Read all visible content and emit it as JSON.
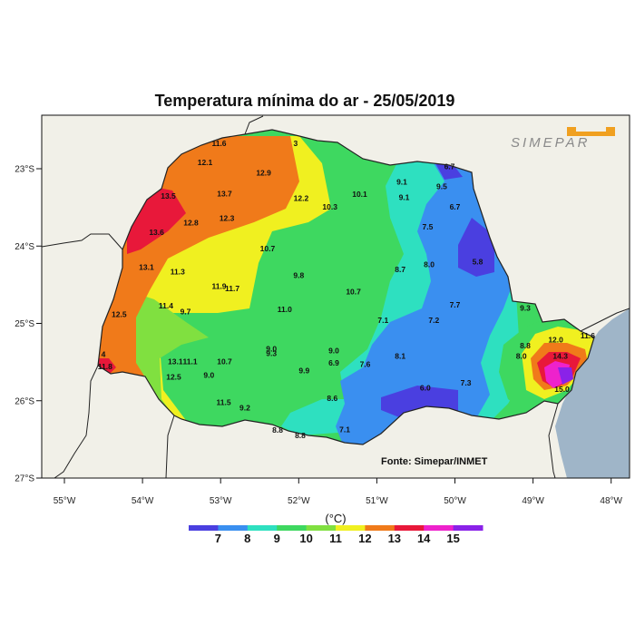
{
  "title": "Temperatura mínima do ar - 25/05/2019",
  "source": "Fonte: Simepar/INMET",
  "logo": {
    "text": "SIMEPAR",
    "mark_color": "#f0a020"
  },
  "axes": {
    "lat_ticks": [
      "23°S",
      "24°S",
      "25°S",
      "26°S",
      "27°S"
    ],
    "lon_ticks": [
      "55°W",
      "54°W",
      "53°W",
      "52°W",
      "51°W",
      "50°W",
      "49°W",
      "48°W"
    ]
  },
  "legend": {
    "unit": "(°C)",
    "labels": [
      "7",
      "8",
      "9",
      "10",
      "11",
      "12",
      "13",
      "14",
      "15"
    ],
    "colors": [
      "#4a3fe0",
      "#3a8ff0",
      "#2ee0c0",
      "#3ed860",
      "#80e040",
      "#f0f020",
      "#f07a1a",
      "#e8183a",
      "#ee22cc",
      "#8a22e8"
    ]
  },
  "colors": {
    "land_bg": "#f1f0e8",
    "ocean": "#9fb5c8",
    "c7": "#4a3fe0",
    "c8": "#3a8ff0",
    "c9": "#2ee0c0",
    "c10": "#3ed860",
    "c11": "#80e040",
    "c12": "#f0f020",
    "c13": "#f07a1a",
    "c14": "#e8183a",
    "c15": "#ee22cc",
    "c16": "#8a22e8"
  },
  "stations": [
    {
      "value": "12.1",
      "lon": -53.2,
      "lat": -22.92
    },
    {
      "value": "12.9",
      "lon": -52.45,
      "lat": -23.05
    },
    {
      "value": "13.7",
      "lon": -52.95,
      "lat": -23.32
    },
    {
      "value": "13.5",
      "lon": -53.67,
      "lat": -23.35
    },
    {
      "value": "12.8",
      "lon": -53.38,
      "lat": -23.7
    },
    {
      "value": "12.3",
      "lon": -52.92,
      "lat": -23.64
    },
    {
      "value": "13.6",
      "lon": -53.82,
      "lat": -23.82
    },
    {
      "value": "12.2",
      "lon": -51.97,
      "lat": -23.38
    },
    {
      "value": "10.3",
      "lon": -51.6,
      "lat": -23.49
    },
    {
      "value": "10.1",
      "lon": -51.22,
      "lat": -23.33
    },
    {
      "value": "9.1",
      "lon": -50.68,
      "lat": -23.17
    },
    {
      "value": "9.5",
      "lon": -50.17,
      "lat": -23.23
    },
    {
      "value": "9.1",
      "lon": -50.65,
      "lat": -23.37
    },
    {
      "value": "6.7",
      "lon": -50.0,
      "lat": -23.49
    },
    {
      "value": "7.5",
      "lon": -50.35,
      "lat": -23.75
    },
    {
      "value": "10.7",
      "lon": -52.4,
      "lat": -24.03
    },
    {
      "value": "13.1",
      "lon": -53.95,
      "lat": -24.27
    },
    {
      "value": "11.3",
      "lon": -53.55,
      "lat": -24.33
    },
    {
      "value": "8.7",
      "lon": -50.7,
      "lat": -24.3
    },
    {
      "value": "8.0",
      "lon": -50.33,
      "lat": -24.24
    },
    {
      "value": "5.8",
      "lon": -49.71,
      "lat": -24.2
    },
    {
      "value": "9.8",
      "lon": -52.0,
      "lat": -24.38
    },
    {
      "value": "11.9",
      "lon": -53.02,
      "lat": -24.52
    },
    {
      "value": "11.7",
      "lon": -52.85,
      "lat": -24.55
    },
    {
      "value": "10.7",
      "lon": -51.3,
      "lat": -24.59
    },
    {
      "value": "11.4",
      "lon": -53.7,
      "lat": -24.77
    },
    {
      "value": "9.7",
      "lon": -53.45,
      "lat": -24.85
    },
    {
      "value": "11.0",
      "lon": -52.18,
      "lat": -24.82
    },
    {
      "value": "12.5",
      "lon": -54.3,
      "lat": -24.88
    },
    {
      "value": "7.7",
      "lon": -50.0,
      "lat": -24.76
    },
    {
      "value": "9.3",
      "lon": -49.1,
      "lat": -24.8
    },
    {
      "value": "7.1",
      "lon": -50.92,
      "lat": -24.96
    },
    {
      "value": "7.2",
      "lon": -50.27,
      "lat": -24.96
    },
    {
      "value": "12.0",
      "lon": -48.71,
      "lat": -25.21
    },
    {
      "value": "11.6",
      "lon": -48.3,
      "lat": -25.16
    },
    {
      "value": "8.8",
      "lon": -49.1,
      "lat": -25.29
    },
    {
      "value": "9.0",
      "lon": -52.35,
      "lat": -25.33
    },
    {
      "value": "9.3",
      "lon": -52.35,
      "lat": -25.39
    },
    {
      "value": "9.0",
      "lon": -51.55,
      "lat": -25.35
    },
    {
      "value": "8.0",
      "lon": -49.15,
      "lat": -25.42
    },
    {
      "value": "14.3",
      "lon": -48.65,
      "lat": -25.42
    },
    {
      "value": "8.1",
      "lon": -50.7,
      "lat": -25.42
    },
    {
      "value": "13.1",
      "lon": -53.58,
      "lat": -25.49
    },
    {
      "value": "11.1",
      "lon": -53.39,
      "lat": -25.49
    },
    {
      "value": "10.7",
      "lon": -52.95,
      "lat": -25.49
    },
    {
      "value": "6.9",
      "lon": -51.55,
      "lat": -25.51
    },
    {
      "value": "7.6",
      "lon": -51.15,
      "lat": -25.53
    },
    {
      "value": "9.9",
      "lon": -51.93,
      "lat": -25.61
    },
    {
      "value": "12.5",
      "lon": -53.6,
      "lat": -25.69
    },
    {
      "value": "9.0",
      "lon": -53.15,
      "lat": -25.67
    },
    {
      "value": "11.8",
      "lon": -54.48,
      "lat": -25.56
    },
    {
      "value": "4",
      "lon": -54.5,
      "lat": -25.4
    },
    {
      "value": "7.3",
      "lon": -49.86,
      "lat": -25.77
    },
    {
      "value": "6.0",
      "lon": -50.38,
      "lat": -25.83
    },
    {
      "value": "15.0",
      "lon": -48.63,
      "lat": -25.85
    },
    {
      "value": "8.6",
      "lon": -51.57,
      "lat": -25.97
    },
    {
      "value": "11.5",
      "lon": -52.96,
      "lat": -26.02
    },
    {
      "value": "9.2",
      "lon": -52.69,
      "lat": -26.09
    },
    {
      "value": "8.8",
      "lon": -52.27,
      "lat": -26.38
    },
    {
      "value": "8.8",
      "lon": -51.98,
      "lat": -26.45
    },
    {
      "value": "7.1",
      "lon": -51.41,
      "lat": -26.37
    },
    {
      "value": "11.6",
      "lon": -53.02,
      "lat": -22.67
    },
    {
      "value": "3",
      "lon": -52.04,
      "lat": -22.67
    },
    {
      "value": "6.7",
      "lon": -50.07,
      "lat": -22.97
    }
  ]
}
